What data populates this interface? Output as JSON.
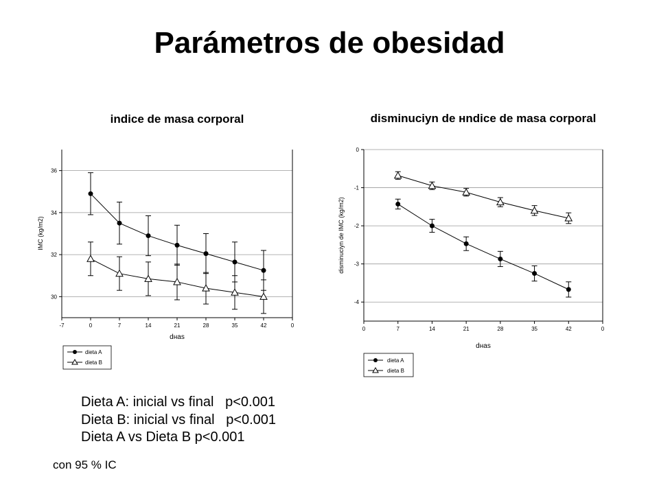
{
  "slide": {
    "title": "Parámetros de obesidad",
    "stats": [
      "Dieta A: inicial vs final   p<0.001",
      "Dieta B: inicial vs final   p<0.001",
      "Dieta A vs Dieta B p<0.001"
    ],
    "footnote": "con 95 % IC"
  },
  "chart_data": [
    {
      "type": "line",
      "title": "indice de masa corporal",
      "xlabel": "dнas",
      "ylabel": "IMC (kg/m2)",
      "xlim": [
        -7,
        0
      ],
      "x_ticks": [
        "-7",
        "0",
        "7",
        "14",
        "21",
        "28",
        "35",
        "42",
        "0"
      ],
      "ylim": [
        29,
        37
      ],
      "y_ticks": [
        30,
        32,
        34,
        36
      ],
      "grid": true,
      "legend": "below-left",
      "categories": [
        "0",
        "7",
        "14",
        "21",
        "28",
        "35",
        "42"
      ],
      "series": [
        {
          "name": "dieta A",
          "marker": "filled-circle",
          "values": [
            34.9,
            33.5,
            32.9,
            32.45,
            32.05,
            31.65,
            31.25
          ],
          "error": [
            1.0,
            1.0,
            0.95,
            0.95,
            0.95,
            0.95,
            0.95
          ]
        },
        {
          "name": "dieta B",
          "marker": "open-triangle",
          "values": [
            31.8,
            31.1,
            30.85,
            30.7,
            30.4,
            30.2,
            30.0
          ],
          "error": [
            0.8,
            0.8,
            0.8,
            0.85,
            0.75,
            0.8,
            0.8
          ]
        }
      ]
    },
    {
      "type": "line",
      "title": "disminuciуn de нndice de masa corporal",
      "xlabel": "dнas",
      "ylabel": "disminuciуn de IMC (kg/m2)",
      "x_ticks": [
        "0",
        "7",
        "14",
        "21",
        "28",
        "35",
        "42",
        "0"
      ],
      "ylim": [
        -4.5,
        0
      ],
      "y_ticks": [
        0,
        -1,
        -2,
        -3,
        -4
      ],
      "grid": true,
      "legend": "below-left",
      "categories": [
        "7",
        "14",
        "21",
        "28",
        "35",
        "42"
      ],
      "series": [
        {
          "name": "dieta A",
          "marker": "filled-circle",
          "values": [
            -1.43,
            -2.0,
            -2.47,
            -2.87,
            -3.25,
            -3.67
          ],
          "error": [
            0.13,
            0.17,
            0.18,
            0.2,
            0.2,
            0.2
          ]
        },
        {
          "name": "dieta B",
          "marker": "open-triangle",
          "values": [
            -0.68,
            -0.95,
            -1.12,
            -1.38,
            -1.6,
            -1.8
          ],
          "error": [
            0.1,
            0.1,
            0.1,
            0.12,
            0.13,
            0.14
          ]
        }
      ]
    }
  ]
}
